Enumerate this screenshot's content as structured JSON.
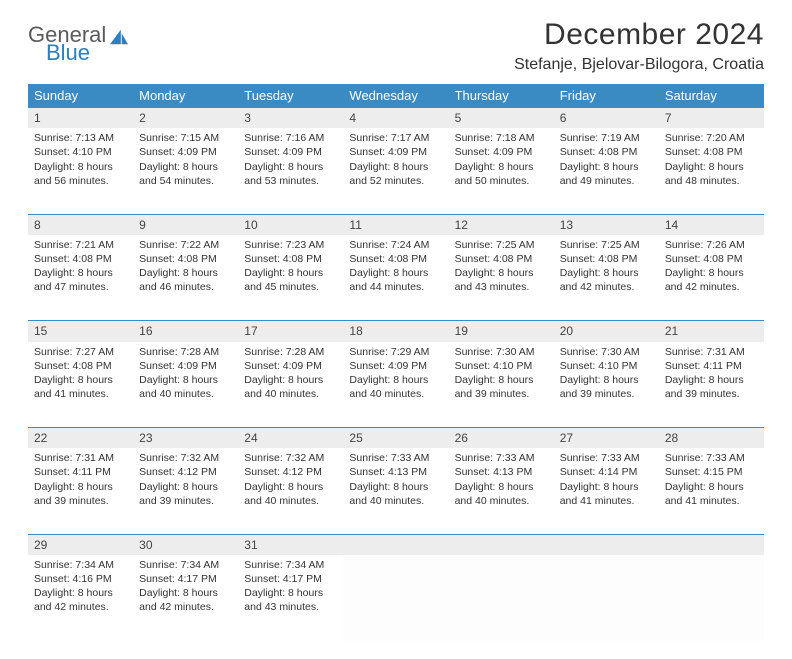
{
  "logo": {
    "word1": "General",
    "word2": "Blue",
    "icon_color": "#2b7fc1",
    "word1_color": "#5a5a5a"
  },
  "title": "December 2024",
  "location": "Stefanje, Bjelovar-Bilogora, Croatia",
  "header_bg": "#3a8ac4",
  "daynum_bg": "#ededed",
  "day_headers": [
    "Sunday",
    "Monday",
    "Tuesday",
    "Wednesday",
    "Thursday",
    "Friday",
    "Saturday"
  ],
  "weeks": [
    [
      {
        "n": "1",
        "sr": "7:13 AM",
        "ss": "4:10 PM",
        "dh": "8",
        "dm": "56"
      },
      {
        "n": "2",
        "sr": "7:15 AM",
        "ss": "4:09 PM",
        "dh": "8",
        "dm": "54"
      },
      {
        "n": "3",
        "sr": "7:16 AM",
        "ss": "4:09 PM",
        "dh": "8",
        "dm": "53"
      },
      {
        "n": "4",
        "sr": "7:17 AM",
        "ss": "4:09 PM",
        "dh": "8",
        "dm": "52"
      },
      {
        "n": "5",
        "sr": "7:18 AM",
        "ss": "4:09 PM",
        "dh": "8",
        "dm": "50"
      },
      {
        "n": "6",
        "sr": "7:19 AM",
        "ss": "4:08 PM",
        "dh": "8",
        "dm": "49"
      },
      {
        "n": "7",
        "sr": "7:20 AM",
        "ss": "4:08 PM",
        "dh": "8",
        "dm": "48"
      }
    ],
    [
      {
        "n": "8",
        "sr": "7:21 AM",
        "ss": "4:08 PM",
        "dh": "8",
        "dm": "47"
      },
      {
        "n": "9",
        "sr": "7:22 AM",
        "ss": "4:08 PM",
        "dh": "8",
        "dm": "46"
      },
      {
        "n": "10",
        "sr": "7:23 AM",
        "ss": "4:08 PM",
        "dh": "8",
        "dm": "45"
      },
      {
        "n": "11",
        "sr": "7:24 AM",
        "ss": "4:08 PM",
        "dh": "8",
        "dm": "44"
      },
      {
        "n": "12",
        "sr": "7:25 AM",
        "ss": "4:08 PM",
        "dh": "8",
        "dm": "43"
      },
      {
        "n": "13",
        "sr": "7:25 AM",
        "ss": "4:08 PM",
        "dh": "8",
        "dm": "42"
      },
      {
        "n": "14",
        "sr": "7:26 AM",
        "ss": "4:08 PM",
        "dh": "8",
        "dm": "42"
      }
    ],
    [
      {
        "n": "15",
        "sr": "7:27 AM",
        "ss": "4:08 PM",
        "dh": "8",
        "dm": "41"
      },
      {
        "n": "16",
        "sr": "7:28 AM",
        "ss": "4:09 PM",
        "dh": "8",
        "dm": "40"
      },
      {
        "n": "17",
        "sr": "7:28 AM",
        "ss": "4:09 PM",
        "dh": "8",
        "dm": "40"
      },
      {
        "n": "18",
        "sr": "7:29 AM",
        "ss": "4:09 PM",
        "dh": "8",
        "dm": "40"
      },
      {
        "n": "19",
        "sr": "7:30 AM",
        "ss": "4:10 PM",
        "dh": "8",
        "dm": "39"
      },
      {
        "n": "20",
        "sr": "7:30 AM",
        "ss": "4:10 PM",
        "dh": "8",
        "dm": "39"
      },
      {
        "n": "21",
        "sr": "7:31 AM",
        "ss": "4:11 PM",
        "dh": "8",
        "dm": "39"
      }
    ],
    [
      {
        "n": "22",
        "sr": "7:31 AM",
        "ss": "4:11 PM",
        "dh": "8",
        "dm": "39"
      },
      {
        "n": "23",
        "sr": "7:32 AM",
        "ss": "4:12 PM",
        "dh": "8",
        "dm": "39"
      },
      {
        "n": "24",
        "sr": "7:32 AM",
        "ss": "4:12 PM",
        "dh": "8",
        "dm": "40"
      },
      {
        "n": "25",
        "sr": "7:33 AM",
        "ss": "4:13 PM",
        "dh": "8",
        "dm": "40"
      },
      {
        "n": "26",
        "sr": "7:33 AM",
        "ss": "4:13 PM",
        "dh": "8",
        "dm": "40"
      },
      {
        "n": "27",
        "sr": "7:33 AM",
        "ss": "4:14 PM",
        "dh": "8",
        "dm": "41"
      },
      {
        "n": "28",
        "sr": "7:33 AM",
        "ss": "4:15 PM",
        "dh": "8",
        "dm": "41"
      }
    ],
    [
      {
        "n": "29",
        "sr": "7:34 AM",
        "ss": "4:16 PM",
        "dh": "8",
        "dm": "42"
      },
      {
        "n": "30",
        "sr": "7:34 AM",
        "ss": "4:17 PM",
        "dh": "8",
        "dm": "42"
      },
      {
        "n": "31",
        "sr": "7:34 AM",
        "ss": "4:17 PM",
        "dh": "8",
        "dm": "43"
      },
      null,
      null,
      null,
      null
    ]
  ]
}
